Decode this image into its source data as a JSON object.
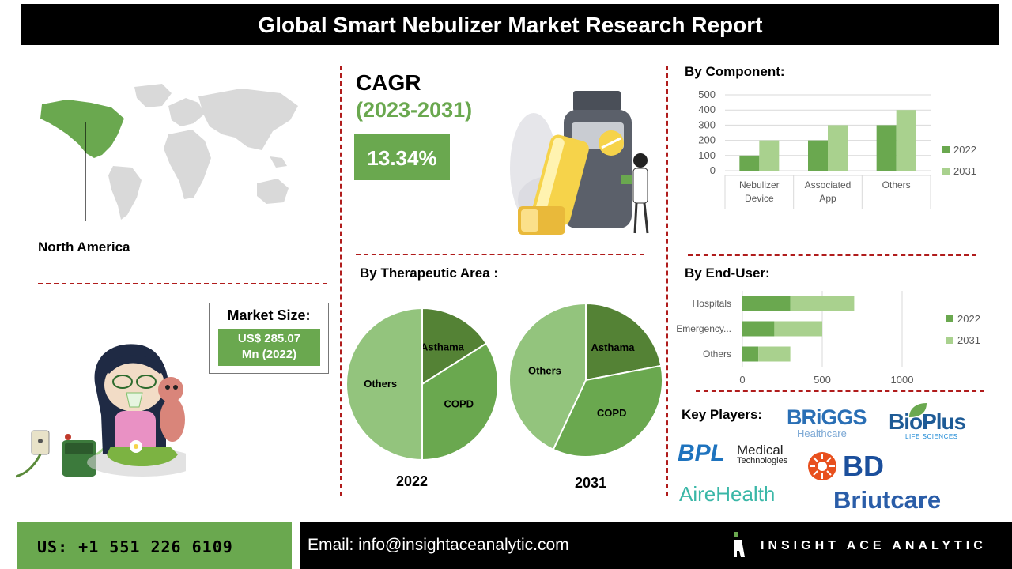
{
  "header": {
    "title": "Global Smart Nebulizer Market Research Report"
  },
  "region": {
    "label": "North America"
  },
  "cagr": {
    "title": "CAGR",
    "years": "(2023-2031)",
    "value": "13.34%"
  },
  "market_size": {
    "label": "Market Size:",
    "value_line1": "US$ 285.07",
    "value_line2": "Mn (2022)"
  },
  "sections": {
    "component": "By Component:",
    "therapeutic": "By Therapeutic Area :",
    "end_user": "By End-User:",
    "key_players": "Key Players:"
  },
  "key_players": {
    "briggs": "BRiGGS",
    "briggs_sub": "Healthcare",
    "bioplus": "BioPlus",
    "bioplus_sub": "LIFE SCIENCES",
    "bpl": "BPL",
    "bpl_sub1": "Medical",
    "bpl_sub2": "Technologies",
    "bd": "BD",
    "airehealth": "AireHealth",
    "briutcare": "Briutcare"
  },
  "footer": {
    "phone": "US: +1 551 226 6109",
    "email": "Email: info@insightaceanalytic.com",
    "brand": "INSIGHT ACE ANALYTIC"
  },
  "colors": {
    "dark_green": "#548235",
    "mid_green": "#6aa84f",
    "light_green": "#a9d18e",
    "pie_light": "#93c47d",
    "accent_red": "#b01c1c"
  },
  "chart_data": [
    {
      "type": "bar",
      "title": "By Component:",
      "categories": [
        "Nebulizer Device",
        "Associated App",
        "Others"
      ],
      "series": [
        {
          "name": "2022",
          "values": [
            100,
            200,
            300
          ]
        },
        {
          "name": "2031",
          "values": [
            200,
            300,
            400
          ]
        }
      ],
      "ylim": [
        0,
        500
      ],
      "yticks": [
        "0",
        "100",
        "200",
        "300",
        "400",
        "500"
      ],
      "grid": true,
      "legend": "right"
    },
    {
      "type": "bar",
      "orientation": "horizontal",
      "stacked": true,
      "title": "By End-User:",
      "categories": [
        "Hospitals",
        "Emergency...",
        "Others"
      ],
      "series": [
        {
          "name": "2022",
          "values": [
            300,
            200,
            100
          ]
        },
        {
          "name": "2031",
          "values": [
            400,
            300,
            200
          ]
        }
      ],
      "xlim": [
        0,
        1000
      ],
      "xticks": [
        "0",
        "500",
        "1000"
      ],
      "grid": true,
      "legend": "right"
    },
    {
      "type": "pie",
      "title": "2022",
      "labels": [
        "Asthama",
        "COPD",
        "Others"
      ],
      "values": [
        16,
        34,
        50
      ]
    },
    {
      "type": "pie",
      "title": "2031",
      "labels": [
        "Asthama",
        "COPD",
        "Others"
      ],
      "values": [
        22,
        35,
        43
      ]
    }
  ]
}
